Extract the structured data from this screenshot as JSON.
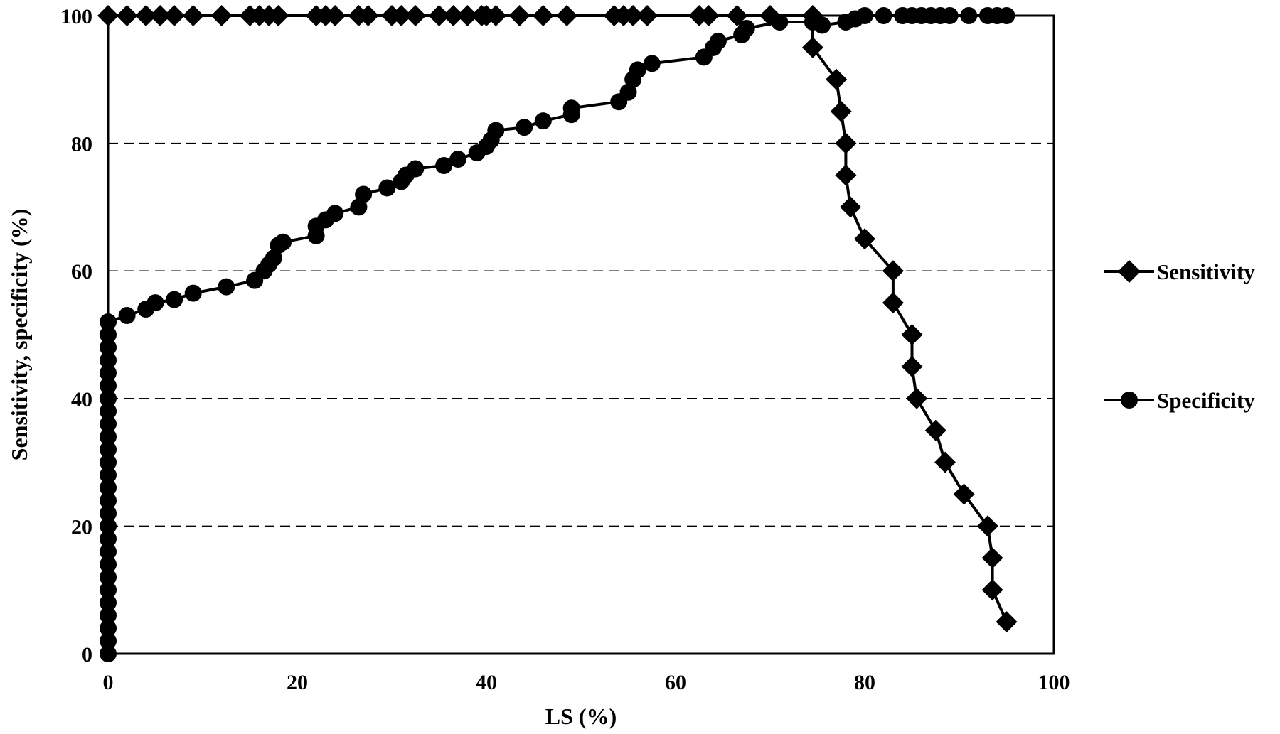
{
  "chart_data": {
    "type": "line",
    "title": "",
    "xlabel": "LS (%)",
    "ylabel": "Sensitivity, specificity (%)",
    "xlim": [
      0,
      100
    ],
    "ylim": [
      0,
      100
    ],
    "xticks": [
      "0",
      "20",
      "40",
      "60",
      "80",
      "100"
    ],
    "yticks": [
      "0",
      "20",
      "40",
      "60",
      "80",
      "100"
    ],
    "grid": "horizontal dashed",
    "legend_position": "right",
    "series": [
      {
        "name": "Sensitivity",
        "marker": "diamond",
        "color": "#000000",
        "points": [
          [
            0,
            100
          ],
          [
            2,
            100
          ],
          [
            4,
            100
          ],
          [
            5.5,
            100
          ],
          [
            7,
            100
          ],
          [
            9,
            100
          ],
          [
            12,
            100
          ],
          [
            15,
            100
          ],
          [
            16,
            100
          ],
          [
            17,
            100
          ],
          [
            18,
            100
          ],
          [
            22,
            100
          ],
          [
            23,
            100
          ],
          [
            24,
            100
          ],
          [
            26.5,
            100
          ],
          [
            27.5,
            100
          ],
          [
            30,
            100
          ],
          [
            31,
            100
          ],
          [
            32.5,
            100
          ],
          [
            35,
            100
          ],
          [
            36.5,
            100
          ],
          [
            38,
            100
          ],
          [
            39.5,
            100
          ],
          [
            40,
            100
          ],
          [
            41,
            100
          ],
          [
            43.5,
            100
          ],
          [
            46,
            100
          ],
          [
            48.5,
            100
          ],
          [
            53.5,
            100
          ],
          [
            54.5,
            100
          ],
          [
            55.5,
            100
          ],
          [
            57,
            100
          ],
          [
            62.5,
            100
          ],
          [
            63.5,
            100
          ],
          [
            66.5,
            100
          ],
          [
            70,
            100
          ],
          [
            74.5,
            100
          ],
          [
            74.5,
            95
          ],
          [
            77,
            90
          ],
          [
            77.5,
            85
          ],
          [
            78,
            80
          ],
          [
            78,
            75
          ],
          [
            78.5,
            70
          ],
          [
            80,
            65
          ],
          [
            83,
            60
          ],
          [
            83,
            55
          ],
          [
            85,
            50
          ],
          [
            85,
            45
          ],
          [
            85.5,
            40
          ],
          [
            87.5,
            35
          ],
          [
            88.5,
            30
          ],
          [
            90.5,
            25
          ],
          [
            93,
            20
          ],
          [
            93.5,
            15
          ],
          [
            93.5,
            10
          ],
          [
            95,
            5
          ]
        ]
      },
      {
        "name": "Specificity",
        "marker": "circle",
        "color": "#000000",
        "points": [
          [
            0,
            0
          ],
          [
            0,
            2
          ],
          [
            0,
            4
          ],
          [
            0,
            6
          ],
          [
            0,
            8
          ],
          [
            0,
            10
          ],
          [
            0,
            12
          ],
          [
            0,
            14
          ],
          [
            0,
            16
          ],
          [
            0,
            18
          ],
          [
            0,
            20
          ],
          [
            0,
            22
          ],
          [
            0,
            24
          ],
          [
            0,
            26
          ],
          [
            0,
            28
          ],
          [
            0,
            30
          ],
          [
            0,
            32
          ],
          [
            0,
            34
          ],
          [
            0,
            36
          ],
          [
            0,
            38
          ],
          [
            0,
            40
          ],
          [
            0,
            42
          ],
          [
            0,
            44
          ],
          [
            0,
            46
          ],
          [
            0,
            48
          ],
          [
            0,
            50
          ],
          [
            0,
            52
          ],
          [
            2,
            53
          ],
          [
            4,
            54
          ],
          [
            5,
            55
          ],
          [
            7,
            55.5
          ],
          [
            9,
            56.5
          ],
          [
            12.5,
            57.5
          ],
          [
            15.5,
            58.5
          ],
          [
            16.5,
            60
          ],
          [
            17,
            61
          ],
          [
            17.5,
            62
          ],
          [
            18,
            64
          ],
          [
            18.5,
            64.5
          ],
          [
            22,
            65.5
          ],
          [
            22,
            67
          ],
          [
            23,
            68
          ],
          [
            24,
            69
          ],
          [
            26.5,
            70
          ],
          [
            27,
            72
          ],
          [
            29.5,
            73
          ],
          [
            31,
            74
          ],
          [
            31.5,
            75
          ],
          [
            32.5,
            76
          ],
          [
            35.5,
            76.5
          ],
          [
            37,
            77.5
          ],
          [
            39,
            78.5
          ],
          [
            40,
            79.5
          ],
          [
            40.5,
            80.5
          ],
          [
            41,
            82
          ],
          [
            44,
            82.5
          ],
          [
            46,
            83.5
          ],
          [
            49,
            84.5
          ],
          [
            49,
            85.5
          ],
          [
            54,
            86.5
          ],
          [
            55,
            88
          ],
          [
            55.5,
            90
          ],
          [
            56,
            91.5
          ],
          [
            57.5,
            92.5
          ],
          [
            63,
            93.5
          ],
          [
            64,
            95
          ],
          [
            64.5,
            96
          ],
          [
            67,
            97
          ],
          [
            67.5,
            98
          ],
          [
            71,
            99
          ],
          [
            74.5,
            99
          ],
          [
            75.5,
            98.5
          ],
          [
            78,
            99
          ],
          [
            79,
            99.5
          ],
          [
            80,
            100
          ],
          [
            82,
            100
          ],
          [
            84,
            100
          ],
          [
            85,
            100
          ],
          [
            86,
            100
          ],
          [
            87,
            100
          ],
          [
            88,
            100
          ],
          [
            89,
            100
          ],
          [
            91,
            100
          ],
          [
            93,
            100
          ],
          [
            94,
            100
          ],
          [
            95,
            100
          ]
        ]
      }
    ]
  }
}
